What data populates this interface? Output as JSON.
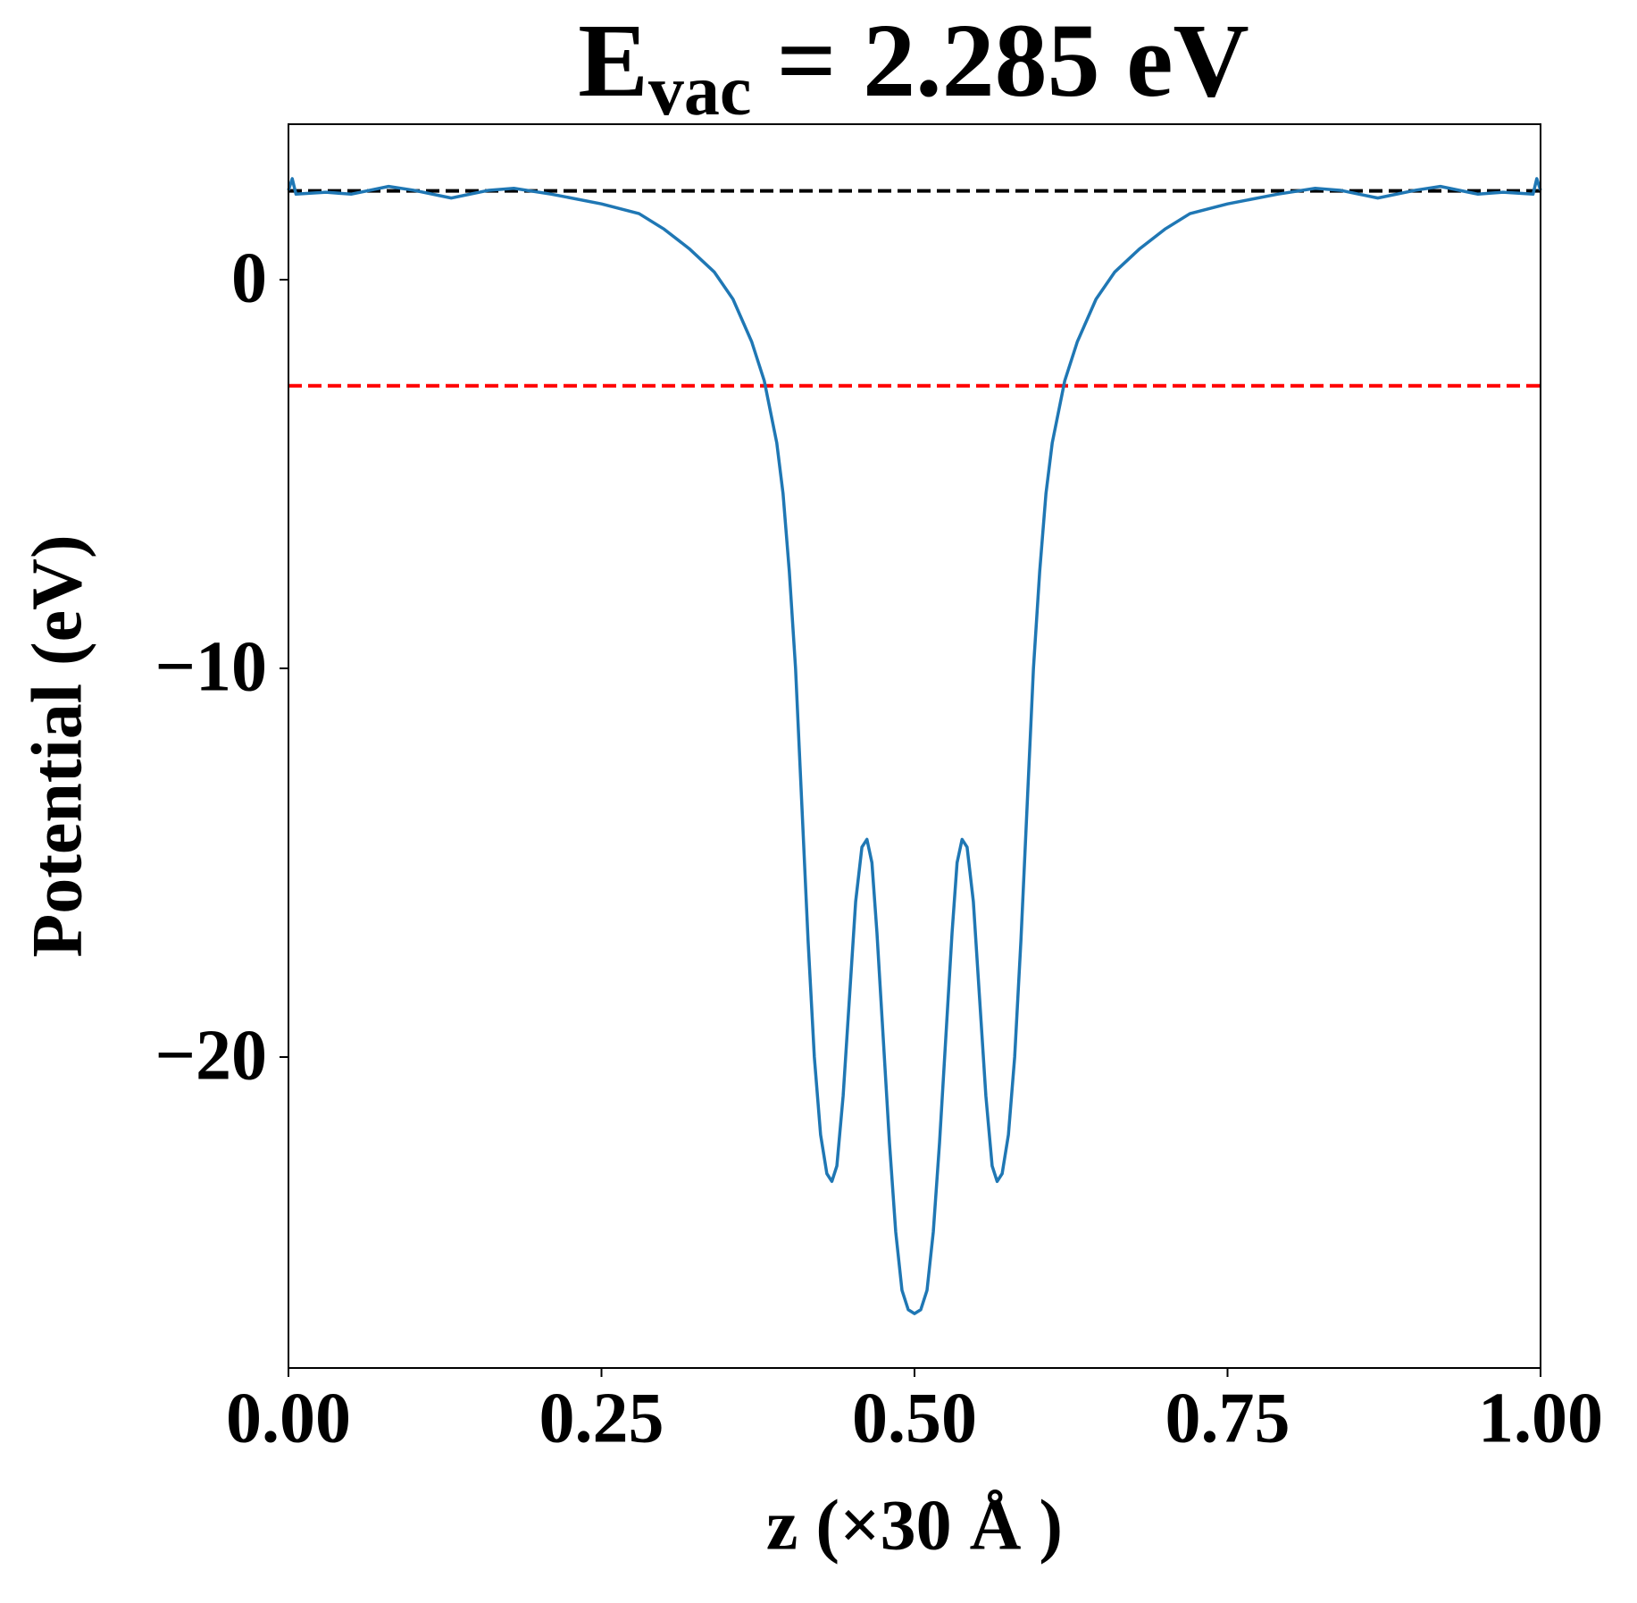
{
  "chart_data": {
    "type": "line",
    "title_parts": [
      "E",
      "vac",
      "= 2.285 eV"
    ],
    "x_label": "z (×30 Å )",
    "y_label": "Potential (eV)",
    "xlim": [
      0,
      1
    ],
    "ylim": [
      -28,
      4
    ],
    "xticks": [
      {
        "value": 0,
        "label": "0.00"
      },
      {
        "value": 0.25,
        "label": "0.25"
      },
      {
        "value": 0.5,
        "label": "0.50"
      },
      {
        "value": 0.75,
        "label": "0.75"
      },
      {
        "value": 1,
        "label": "1.00"
      }
    ],
    "yticks": [
      0,
      {
        "value": -10,
        "label": "−10"
      },
      {
        "value": -20,
        "label": "−20"
      }
    ],
    "hlines": [
      {
        "value": 2.285,
        "color": "#000000"
      },
      {
        "value": -2.73,
        "color": "#ff0000"
      }
    ],
    "series": [
      {
        "color": "#1f77b4",
        "x": [
          0,
          0.003,
          0.006,
          0.03,
          0.05,
          0.08,
          0.1,
          0.13,
          0.16,
          0.18,
          0.21,
          0.25,
          0.28,
          0.3,
          0.32,
          0.34,
          0.355,
          0.37,
          0.38,
          0.39,
          0.395,
          0.4,
          0.405,
          0.41,
          0.415,
          0.42,
          0.425,
          0.43,
          0.434,
          0.438,
          0.443,
          0.448,
          0.453,
          0.458,
          0.462,
          0.466,
          0.47,
          0.475,
          0.48,
          0.485,
          0.49,
          0.495,
          0.5,
          0.505,
          0.51,
          0.515,
          0.52,
          0.525,
          0.53,
          0.534,
          0.538,
          0.542,
          0.547,
          0.552,
          0.557,
          0.562,
          0.566,
          0.57,
          0.575,
          0.58,
          0.585,
          0.59,
          0.595,
          0.6,
          0.605,
          0.61,
          0.62,
          0.63,
          0.645,
          0.66,
          0.68,
          0.7,
          0.72,
          0.75,
          0.79,
          0.82,
          0.84,
          0.87,
          0.9,
          0.92,
          0.95,
          0.97,
          0.994,
          0.997,
          1.0
        ],
        "values": [
          2.3,
          2.6,
          2.2,
          2.25,
          2.2,
          2.4,
          2.3,
          2.1,
          2.3,
          2.35,
          2.2,
          1.95,
          1.7,
          1.3,
          0.8,
          0.2,
          -0.5,
          -1.6,
          -2.6,
          -4.2,
          -5.5,
          -7.5,
          -10,
          -13.5,
          -17,
          -20,
          -22,
          -23.0,
          -23.2,
          -22.8,
          -21,
          -18.5,
          -16,
          -14.6,
          -14.4,
          -15,
          -16.8,
          -19.5,
          -22.2,
          -24.5,
          -26,
          -26.5,
          -26.6,
          -26.5,
          -26,
          -24.5,
          -22.2,
          -19.5,
          -16.8,
          -15,
          -14.4,
          -14.6,
          -16,
          -18.5,
          -21,
          -22.8,
          -23.2,
          -23.0,
          -22,
          -20,
          -17,
          -13.5,
          -10,
          -7.5,
          -5.5,
          -4.2,
          -2.6,
          -1.6,
          -0.5,
          0.2,
          0.8,
          1.3,
          1.7,
          1.95,
          2.2,
          2.35,
          2.3,
          2.1,
          2.3,
          2.4,
          2.2,
          2.25,
          2.2,
          2.6,
          2.3
        ]
      }
    ]
  }
}
